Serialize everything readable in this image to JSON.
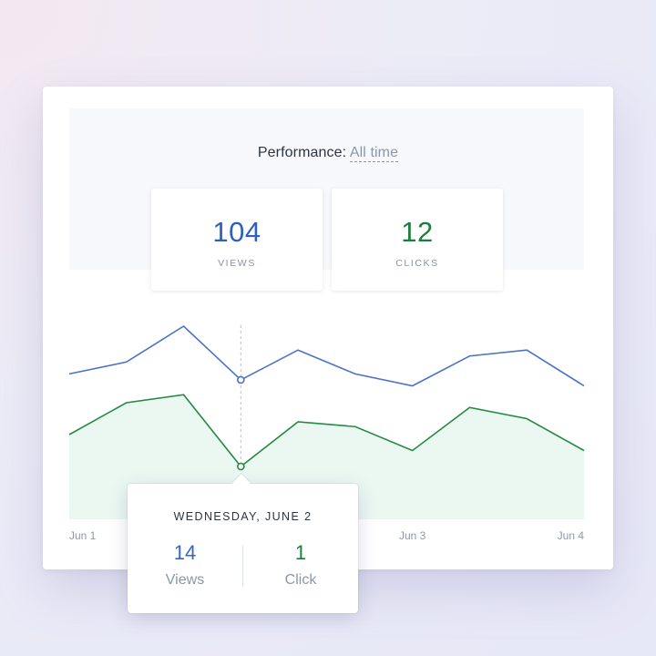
{
  "performance": {
    "label": "Performance:",
    "range": "All time"
  },
  "stats": {
    "views": {
      "value": "104",
      "label": "VIEWS"
    },
    "clicks": {
      "value": "12",
      "label": "CLICKS"
    }
  },
  "tooltip": {
    "date": "WEDNESDAY, JUNE 2",
    "views_value": "14",
    "views_label": "Views",
    "clicks_value": "1",
    "clicks_label": "Click"
  },
  "colors": {
    "views": "#4a72c8",
    "clicks": "#268a43",
    "clicks_fill": "#ebf7f1"
  },
  "chart_data": {
    "type": "line",
    "x": [
      0,
      1,
      2,
      3,
      4,
      5,
      6,
      7,
      8,
      9
    ],
    "xticks": [
      {
        "x": 0,
        "label": "Jun 1"
      },
      {
        "x": 6,
        "label": "Jun 3"
      },
      {
        "x": 9,
        "label": "Jun 4"
      }
    ],
    "series": [
      {
        "key": "views",
        "values": [
          15,
          17,
          23,
          14,
          19,
          15,
          13,
          18,
          19,
          13
        ]
      },
      {
        "key": "clicks",
        "values": [
          3,
          5,
          5.5,
          1,
          3.8,
          3.5,
          2,
          4.7,
          4,
          2
        ]
      }
    ],
    "highlight_index": 3,
    "ylim": [
      0,
      10
    ],
    "grid": false,
    "area_fill_series": "clicks"
  }
}
